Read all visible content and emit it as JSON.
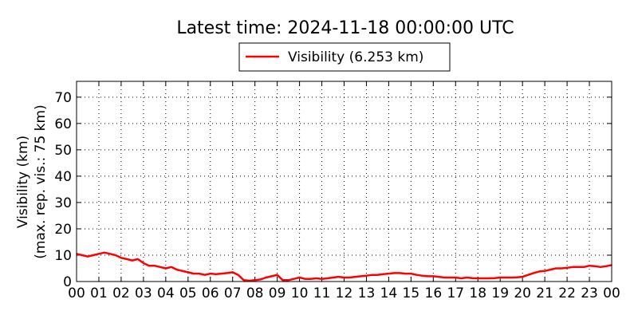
{
  "title": "Latest time: 2024-11-18 00:00:00 UTC",
  "chart_data": {
    "type": "line",
    "title": "Latest time: 2024-11-18 00:00:00 UTC",
    "ylabel_line1": "Visibility (km)",
    "ylabel_line2": "(max. rep. vis.: 75 km)",
    "xlabel": "",
    "xlim": [
      0,
      24
    ],
    "ylim": [
      0,
      76
    ],
    "grid": true,
    "legend_position": "top-center, above plot",
    "x_tick_labels": [
      "00",
      "01",
      "02",
      "03",
      "04",
      "05",
      "06",
      "07",
      "08",
      "09",
      "10",
      "11",
      "12",
      "13",
      "14",
      "15",
      "16",
      "17",
      "18",
      "19",
      "20",
      "21",
      "22",
      "23",
      "00"
    ],
    "y_ticks": [
      0,
      10,
      20,
      30,
      40,
      50,
      60,
      70
    ],
    "series": [
      {
        "name": "Visibility (6.253 km)",
        "color": "#ff0000",
        "x": [
          0,
          0.25,
          0.5,
          0.75,
          1,
          1.25,
          1.5,
          1.75,
          2,
          2.25,
          2.5,
          2.75,
          3,
          3.25,
          3.5,
          3.75,
          4,
          4.25,
          4.5,
          4.75,
          5,
          5.25,
          5.5,
          5.75,
          6,
          6.25,
          6.5,
          6.75,
          7,
          7.25,
          7.5,
          7.75,
          8,
          8.25,
          8.5,
          8.75,
          9,
          9.25,
          9.5,
          9.75,
          10,
          10.25,
          10.5,
          10.75,
          11,
          11.25,
          11.5,
          11.75,
          12,
          12.25,
          12.5,
          12.75,
          13,
          13.25,
          13.5,
          13.75,
          14,
          14.25,
          14.5,
          14.75,
          15,
          15.25,
          15.5,
          15.75,
          16,
          16.25,
          16.5,
          16.75,
          17,
          17.25,
          17.5,
          17.75,
          18,
          18.25,
          18.5,
          18.75,
          19,
          19.25,
          19.5,
          19.75,
          20,
          20.25,
          20.5,
          20.75,
          21,
          21.25,
          21.5,
          21.75,
          22,
          22.25,
          22.5,
          22.75,
          23,
          23.25,
          23.5,
          23.75,
          24
        ],
        "y": [
          10.5,
          10,
          9.5,
          10,
          10.5,
          11,
          10.5,
          10,
          9,
          8.5,
          8,
          8.5,
          7,
          6,
          6,
          5.5,
          5,
          5.5,
          4.5,
          4,
          3.5,
          3,
          3,
          2.5,
          3,
          2.8,
          3,
          3.2,
          3.5,
          2.5,
          0.5,
          0.3,
          0.5,
          0.8,
          1.5,
          2,
          2.5,
          0.5,
          0.5,
          1,
          1.5,
          1,
          1,
          1.2,
          1,
          1.2,
          1.5,
          1.8,
          1.5,
          1.5,
          1.8,
          2,
          2.2,
          2.5,
          2.5,
          2.8,
          3,
          3.2,
          3.2,
          3,
          3,
          2.5,
          2.2,
          2,
          2,
          1.8,
          1.5,
          1.5,
          1.5,
          1.2,
          1.5,
          1.3,
          1.2,
          1.2,
          1.2,
          1.3,
          1.5,
          1.5,
          1.5,
          1.6,
          1.8,
          2.5,
          3.2,
          3.8,
          4,
          4.5,
          5,
          5,
          5.2,
          5.5,
          5.5,
          5.5,
          6,
          5.8,
          5.5,
          5.8,
          6.25
        ]
      }
    ]
  }
}
